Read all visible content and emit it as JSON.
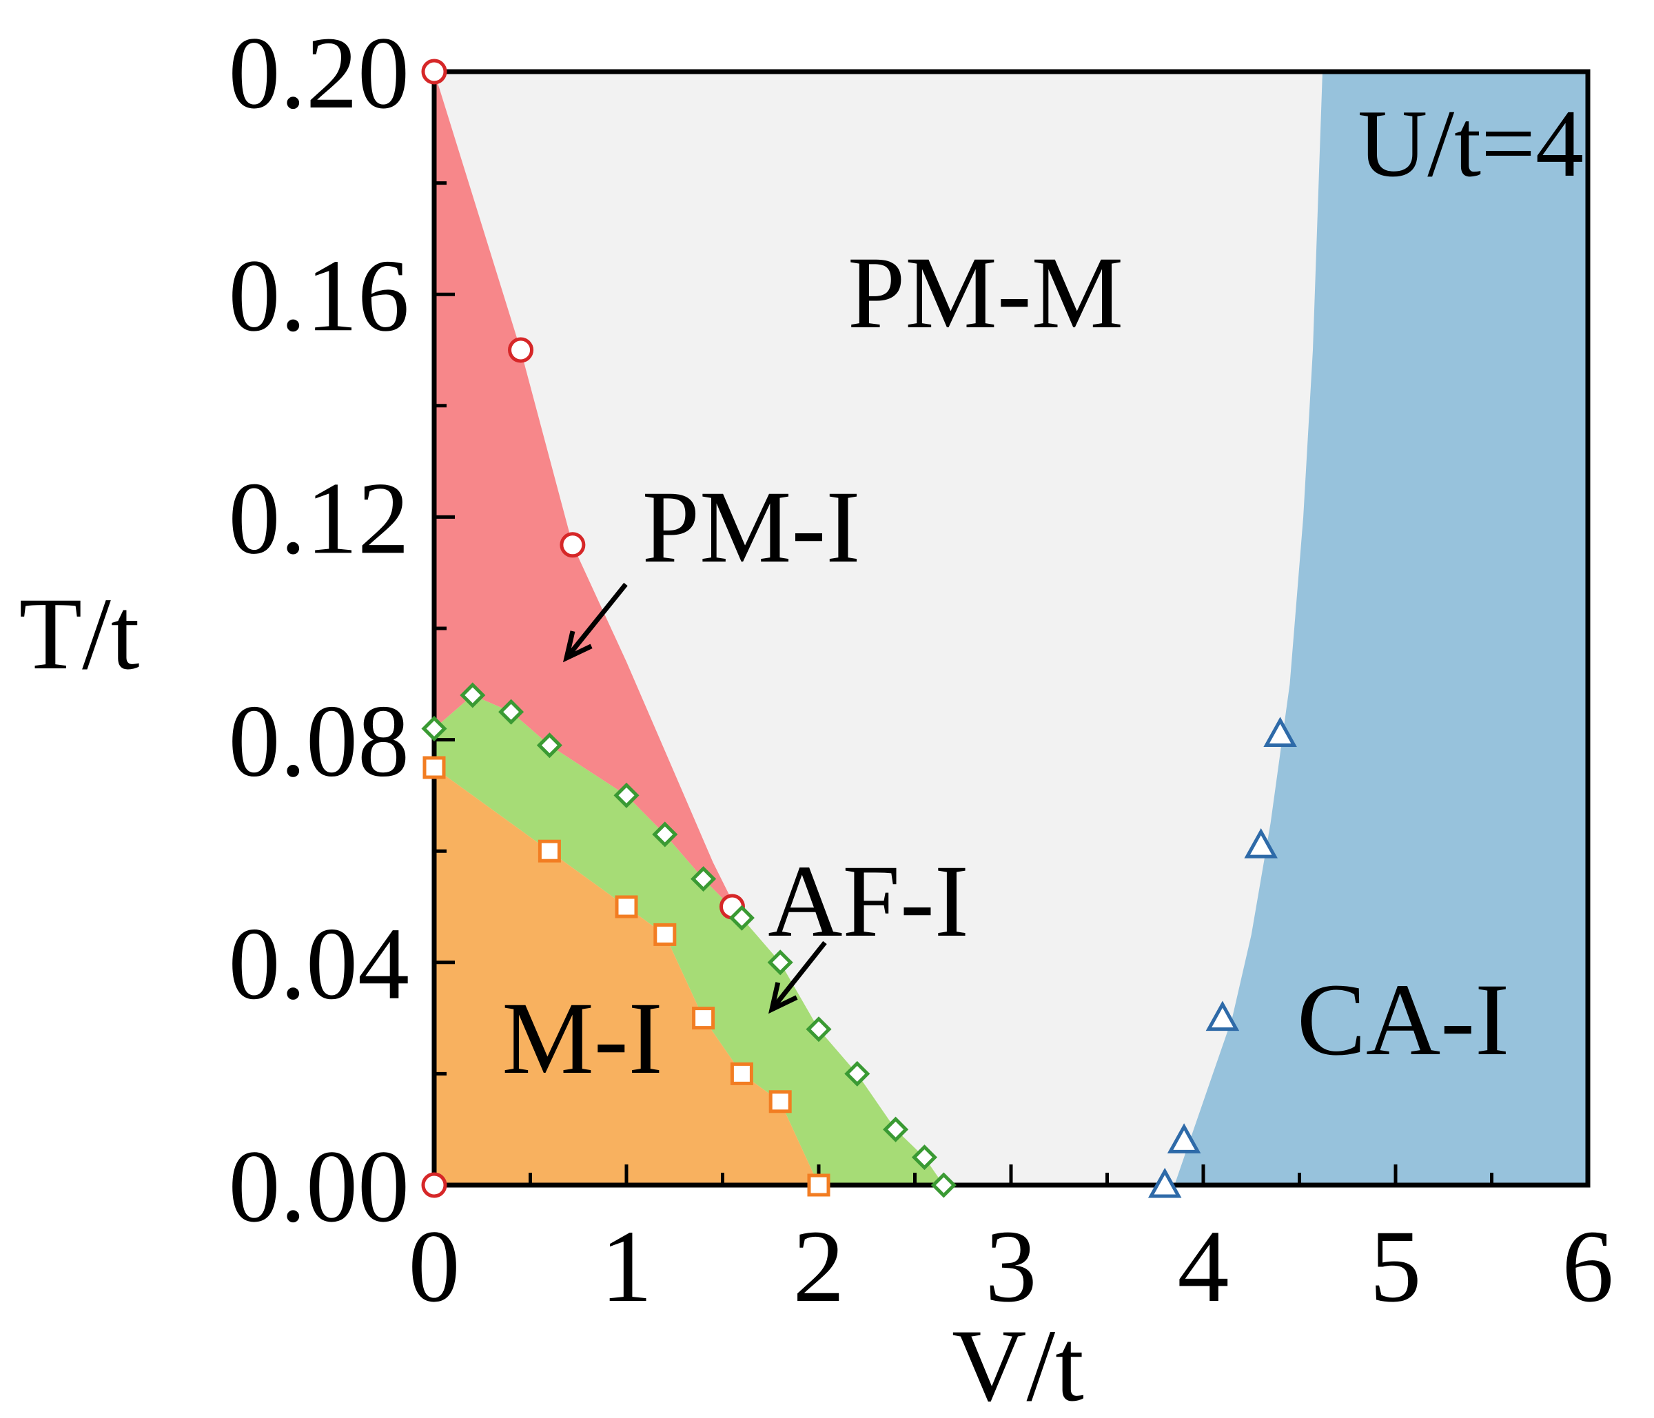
{
  "chart_data": {
    "type": "scatter",
    "xlabel": "V/t",
    "ylabel": "T/t",
    "annotation": "U/t=4",
    "xlim": [
      0,
      6
    ],
    "ylim": [
      0,
      0.2
    ],
    "xticks": [
      "0",
      "1",
      "2",
      "3",
      "4",
      "5",
      "6"
    ],
    "yticks": [
      "0.00",
      "0.04",
      "0.08",
      "0.12",
      "0.16",
      "0.20"
    ],
    "grid": false,
    "legend": "none",
    "regions": [
      {
        "label": "PM-M",
        "color": "#f2f2f2"
      },
      {
        "label": "PM-I",
        "color": "#f7878a"
      },
      {
        "label": "AF-I",
        "color": "#a6dc76"
      },
      {
        "label": "M-I",
        "color": "#f8b15f"
      },
      {
        "label": "CA-I",
        "color": "#97c2dc"
      }
    ],
    "series": [
      {
        "marker": "circle",
        "color": "#d62728",
        "points": [
          [
            0,
            0.2
          ],
          [
            0.45,
            0.15
          ],
          [
            0.72,
            0.115
          ],
          [
            1.55,
            0.05
          ],
          [
            0,
            0.0
          ]
        ]
      },
      {
        "marker": "diamond",
        "color": "#3a9a33",
        "points": [
          [
            0,
            0.082
          ],
          [
            0.2,
            0.088
          ],
          [
            0.4,
            0.085
          ],
          [
            0.6,
            0.079
          ],
          [
            1.0,
            0.07
          ],
          [
            1.2,
            0.063
          ],
          [
            1.4,
            0.055
          ],
          [
            1.6,
            0.048
          ],
          [
            1.8,
            0.04
          ],
          [
            2.0,
            0.028
          ],
          [
            2.2,
            0.02
          ],
          [
            2.4,
            0.01
          ],
          [
            2.55,
            0.005
          ],
          [
            2.65,
            0.0
          ]
        ]
      },
      {
        "marker": "square",
        "color": "#f27d22",
        "points": [
          [
            0,
            0.075
          ],
          [
            0.6,
            0.06
          ],
          [
            1.0,
            0.05
          ],
          [
            1.2,
            0.045
          ],
          [
            1.4,
            0.03
          ],
          [
            1.6,
            0.02
          ],
          [
            1.8,
            0.015
          ],
          [
            2.0,
            0.0
          ]
        ]
      },
      {
        "marker": "triangle",
        "color": "#2e6aa8",
        "points": [
          [
            3.8,
            0.0
          ],
          [
            3.9,
            0.008
          ],
          [
            4.1,
            0.03
          ],
          [
            4.3,
            0.061
          ],
          [
            4.4,
            0.081
          ]
        ]
      }
    ]
  }
}
